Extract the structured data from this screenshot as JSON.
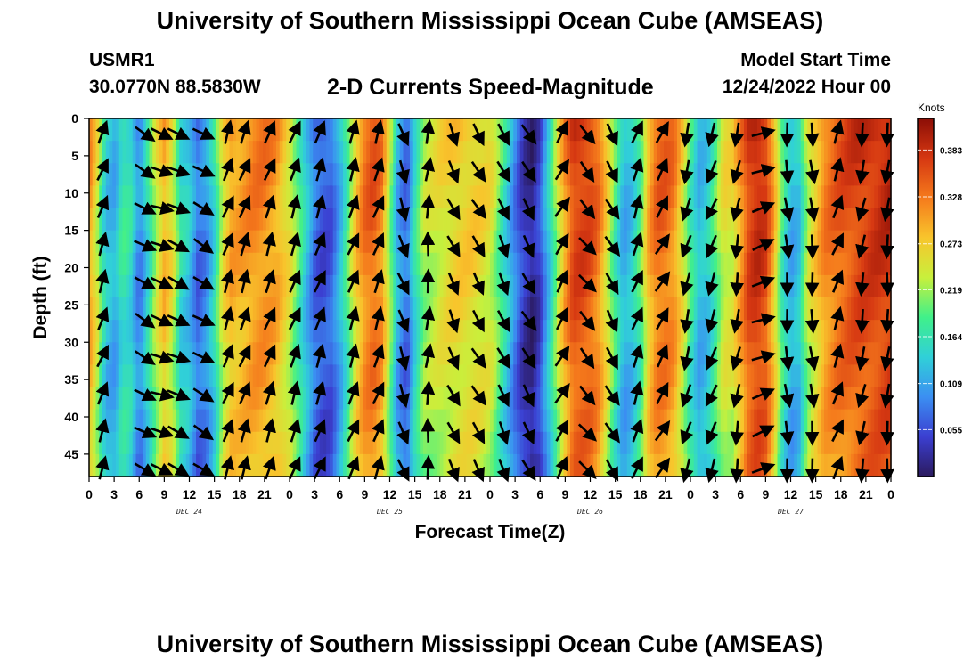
{
  "header": {
    "main_title": "University of Southern Mississippi Ocean Cube (AMSEAS)",
    "station_id": "USMR1",
    "station_coords": "30.0770N  88.5830W",
    "chart_title": "2-D Currents Speed-Magnitude",
    "start_label": "Model Start Time",
    "start_value": "12/24/2022 Hour 00"
  },
  "footer": {
    "repeated_title": "University of Southern Mississippi Ocean Cube (AMSEAS)"
  },
  "colors": {
    "colormap": [
      "#2b1a5e",
      "#3b3fd1",
      "#3b8ff2",
      "#30d0d8",
      "#40f08a",
      "#c8f03c",
      "#f8c52c",
      "#f57a1c",
      "#d63812",
      "#8c0e06"
    ],
    "arrow": "#000000"
  },
  "chart_data": {
    "type": "heatmap",
    "title": "2-D Currents Speed-Magnitude",
    "xlabel": "Forecast Time(Z)",
    "ylabel": "Depth (ft)",
    "x_range_hours": [
      0,
      96
    ],
    "x_tick_hours": [
      0,
      3,
      6,
      9,
      12,
      15,
      18,
      21,
      24,
      27,
      30,
      33,
      36,
      39,
      42,
      45,
      48,
      51,
      54,
      57,
      60,
      63,
      66,
      69,
      72,
      75,
      78,
      81,
      84,
      87,
      90,
      93,
      96
    ],
    "x_tick_labels": [
      "0",
      "3",
      "6",
      "9",
      "12",
      "15",
      "18",
      "21",
      "0",
      "3",
      "6",
      "9",
      "12",
      "15",
      "18",
      "21",
      "0",
      "3",
      "6",
      "9",
      "12",
      "15",
      "18",
      "21",
      "0",
      "3",
      "6",
      "9",
      "12",
      "15",
      "18",
      "21",
      "0"
    ],
    "day_labels": [
      {
        "hour": 12,
        "label": "DEC 24"
      },
      {
        "hour": 36,
        "label": "DEC 25"
      },
      {
        "hour": 60,
        "label": "DEC 26"
      },
      {
        "hour": 84,
        "label": "DEC 27"
      }
    ],
    "y_range_ft": [
      0,
      48
    ],
    "y_ticks": [
      0,
      5,
      10,
      15,
      20,
      25,
      30,
      35,
      40,
      45
    ],
    "colorbar": {
      "unit": "Knots",
      "range": [
        0.0,
        0.42
      ],
      "ticks": [
        0.383,
        0.328,
        0.273,
        0.219,
        0.164,
        0.109,
        0.055
      ],
      "tick_labels": [
        "0.383",
        "0.328",
        "0.273",
        "0.219",
        "0.164",
        "0.109",
        "0.055"
      ]
    },
    "speed_profile_knots": [
      [
        0.0,
        0.32
      ],
      [
        1.0,
        0.25
      ],
      [
        2.0,
        0.14
      ],
      [
        3.2,
        0.12
      ],
      [
        4.0,
        0.18
      ],
      [
        5.0,
        0.16
      ],
      [
        6.0,
        0.09
      ],
      [
        7.0,
        0.16
      ],
      [
        8.0,
        0.24
      ],
      [
        9.0,
        0.3
      ],
      [
        10.0,
        0.26
      ],
      [
        11.0,
        0.16
      ],
      [
        12.0,
        0.14
      ],
      [
        13.0,
        0.08
      ],
      [
        14.0,
        0.1
      ],
      [
        15.0,
        0.16
      ],
      [
        16.0,
        0.26
      ],
      [
        17.0,
        0.31
      ],
      [
        18.0,
        0.31
      ],
      [
        19.0,
        0.32
      ],
      [
        20.0,
        0.33
      ],
      [
        21.0,
        0.33
      ],
      [
        22.5,
        0.31
      ],
      [
        24.0,
        0.26
      ],
      [
        25.0,
        0.2
      ],
      [
        26.0,
        0.14
      ],
      [
        27.0,
        0.08
      ],
      [
        28.0,
        0.06
      ],
      [
        29.0,
        0.07
      ],
      [
        30.0,
        0.12
      ],
      [
        31.0,
        0.2
      ],
      [
        32.0,
        0.29
      ],
      [
        33.0,
        0.34
      ],
      [
        34.0,
        0.36
      ],
      [
        35.0,
        0.33
      ],
      [
        36.0,
        0.23
      ],
      [
        37.0,
        0.12
      ],
      [
        38.0,
        0.07
      ],
      [
        39.0,
        0.16
      ],
      [
        40.0,
        0.23
      ],
      [
        42.0,
        0.26
      ],
      [
        44.0,
        0.28
      ],
      [
        46.0,
        0.28
      ],
      [
        48.0,
        0.26
      ],
      [
        49.0,
        0.21
      ],
      [
        50.0,
        0.15
      ],
      [
        51.0,
        0.09
      ],
      [
        52.0,
        0.04
      ],
      [
        53.0,
        0.02
      ],
      [
        54.0,
        0.05
      ],
      [
        55.0,
        0.14
      ],
      [
        56.0,
        0.23
      ],
      [
        57.0,
        0.32
      ],
      [
        58.0,
        0.38
      ],
      [
        59.0,
        0.38
      ],
      [
        60.0,
        0.37
      ],
      [
        61.0,
        0.34
      ],
      [
        62.0,
        0.27
      ],
      [
        63.0,
        0.19
      ],
      [
        64.0,
        0.12
      ],
      [
        65.0,
        0.14
      ],
      [
        66.0,
        0.2
      ],
      [
        67.0,
        0.3
      ],
      [
        68.0,
        0.35
      ],
      [
        69.0,
        0.35
      ],
      [
        70.0,
        0.33
      ],
      [
        71.0,
        0.27
      ],
      [
        72.0,
        0.19
      ],
      [
        73.0,
        0.13
      ],
      [
        74.0,
        0.14
      ],
      [
        75.0,
        0.2
      ],
      [
        76.0,
        0.26
      ],
      [
        77.0,
        0.26
      ],
      [
        78.0,
        0.32
      ],
      [
        79.0,
        0.38
      ],
      [
        80.0,
        0.4
      ],
      [
        81.0,
        0.38
      ],
      [
        82.0,
        0.3
      ],
      [
        83.0,
        0.19
      ],
      [
        84.0,
        0.12
      ],
      [
        85.0,
        0.14
      ],
      [
        86.0,
        0.24
      ],
      [
        88.0,
        0.33
      ],
      [
        90.0,
        0.36
      ],
      [
        92.0,
        0.38
      ],
      [
        94.0,
        0.39
      ],
      [
        96.0,
        0.4
      ]
    ],
    "arrow_hours": [
      2,
      7,
      9,
      11,
      14,
      17,
      19,
      22,
      25,
      28,
      32,
      35,
      38,
      41,
      44,
      47,
      50,
      53,
      57,
      60,
      63,
      66,
      69,
      72,
      75,
      78,
      81,
      84,
      87,
      90,
      93,
      96
    ],
    "arrow_direction_deg": [
      20,
      120,
      110,
      115,
      120,
      20,
      20,
      20,
      20,
      20,
      20,
      20,
      160,
      5,
      155,
      150,
      155,
      150,
      30,
      140,
      150,
      20,
      30,
      195,
      200,
      190,
      70,
      175,
      175,
      20,
      190,
      185
    ],
    "arrow_depths_ft": [
      2,
      7,
      12,
      17,
      22,
      27,
      32,
      37,
      42,
      47
    ]
  }
}
